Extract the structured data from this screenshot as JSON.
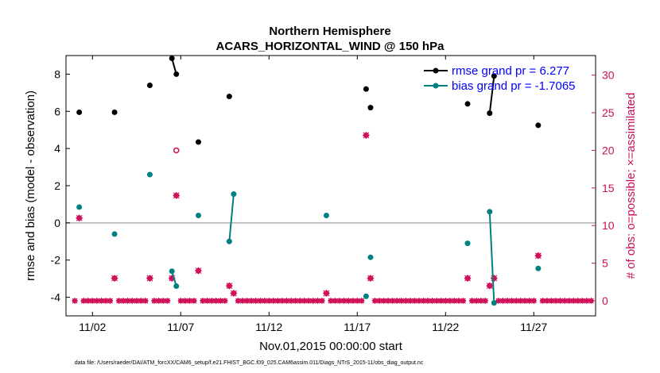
{
  "chart_data": {
    "type": "scatter",
    "title": "Northern Hemisphere",
    "subtitle": "ACARS_HORIZONTAL_WIND @ 150 hPa",
    "xlabel": "Nov.01,2015 00:00:00 start",
    "ylabel": "rmse and bias (model - observation)",
    "y2label": "# of obs: o=possible; ×=assimilated",
    "footnote": "data file: /Users/raeder/DAI/ATM_forcXX/CAM6_setup/f.e21.FHIST_BGC.f09_025.CAM6assim.011/Diags_NTrS_2015-11/obs_diag_output.nc",
    "xlim": [
      0.5,
      30.5
    ],
    "ylim": [
      -5,
      9
    ],
    "y2lim": [
      -2,
      32.6
    ],
    "xticks": [
      {
        "x": 2,
        "label": "11/02"
      },
      {
        "x": 7,
        "label": "11/07"
      },
      {
        "x": 12,
        "label": "11/12"
      },
      {
        "x": 17,
        "label": "11/17"
      },
      {
        "x": 22,
        "label": "11/22"
      },
      {
        "x": 27,
        "label": "11/27"
      }
    ],
    "yticks": [
      {
        "v": -4,
        "label": "-4"
      },
      {
        "v": -2,
        "label": "-2"
      },
      {
        "v": 0,
        "label": "0"
      },
      {
        "v": 2,
        "label": "2"
      },
      {
        "v": 4,
        "label": "4"
      },
      {
        "v": 6,
        "label": "6"
      },
      {
        "v": 8,
        "label": "8"
      }
    ],
    "y2ticks": [
      {
        "v": 0,
        "label": "0"
      },
      {
        "v": 5,
        "label": "5"
      },
      {
        "v": 10,
        "label": "10"
      },
      {
        "v": 15,
        "label": "15"
      },
      {
        "v": 20,
        "label": "20"
      },
      {
        "v": 25,
        "label": "25"
      },
      {
        "v": 30,
        "label": "30"
      }
    ],
    "zero_line": 0,
    "colors": {
      "rmse": "#000000",
      "bias": "#008080",
      "obs": "#d0105a",
      "zero": "#b0b0b0"
    },
    "legend": [
      {
        "series": "rmse",
        "label": "rmse grand pr = 6.277"
      },
      {
        "series": "bias",
        "label": "bias grand pr = -1.7065"
      }
    ],
    "series": [
      {
        "name": "rmse",
        "points": [
          [
            1.25,
            5.95
          ],
          [
            3.25,
            5.95
          ],
          [
            5.25,
            7.4
          ],
          [
            6.5,
            8.85
          ],
          [
            6.75,
            8.0
          ],
          [
            8.0,
            4.35
          ],
          [
            9.75,
            6.8
          ],
          [
            17.5,
            7.2
          ],
          [
            17.75,
            6.2
          ],
          [
            23.25,
            6.4
          ],
          [
            24.5,
            5.9
          ],
          [
            24.75,
            7.9
          ],
          [
            27.25,
            5.25
          ]
        ],
        "segments": [
          [
            [
              6.5,
              8.85
            ],
            [
              6.75,
              8.0
            ]
          ],
          [
            [
              24.5,
              5.9
            ],
            [
              24.75,
              7.9
            ]
          ]
        ]
      },
      {
        "name": "bias",
        "points": [
          [
            1.25,
            0.85
          ],
          [
            3.25,
            -0.6
          ],
          [
            5.25,
            2.6
          ],
          [
            6.5,
            -2.6
          ],
          [
            6.75,
            -3.4
          ],
          [
            8.0,
            0.4
          ],
          [
            9.75,
            -1.0
          ],
          [
            10.0,
            1.55
          ],
          [
            15.25,
            0.4
          ],
          [
            17.5,
            -3.95
          ],
          [
            17.75,
            -1.85
          ],
          [
            23.25,
            -1.1
          ],
          [
            24.5,
            0.6
          ],
          [
            24.75,
            -4.3
          ],
          [
            27.25,
            -2.45
          ]
        ],
        "segments": [
          [
            [
              6.5,
              -2.6
            ],
            [
              6.75,
              -3.4
            ]
          ],
          [
            [
              9.75,
              -1.0
            ],
            [
              10.0,
              1.55
            ]
          ],
          [
            [
              24.5,
              0.6
            ],
            [
              24.75,
              -4.3
            ]
          ]
        ]
      },
      {
        "name": "obs_possible",
        "points": [
          [
            6.75,
            20
          ]
        ]
      },
      {
        "name": "obs_assimilated",
        "points": [
          [
            1.25,
            11
          ],
          [
            3.25,
            3
          ],
          [
            5.25,
            3
          ],
          [
            6.5,
            3
          ],
          [
            6.75,
            14
          ],
          [
            8.0,
            4
          ],
          [
            9.75,
            2
          ],
          [
            10.0,
            1
          ],
          [
            15.25,
            1
          ],
          [
            17.5,
            22
          ],
          [
            17.75,
            3
          ],
          [
            23.25,
            3
          ],
          [
            24.5,
            2
          ],
          [
            24.75,
            3
          ],
          [
            27.25,
            6
          ]
        ]
      }
    ]
  }
}
